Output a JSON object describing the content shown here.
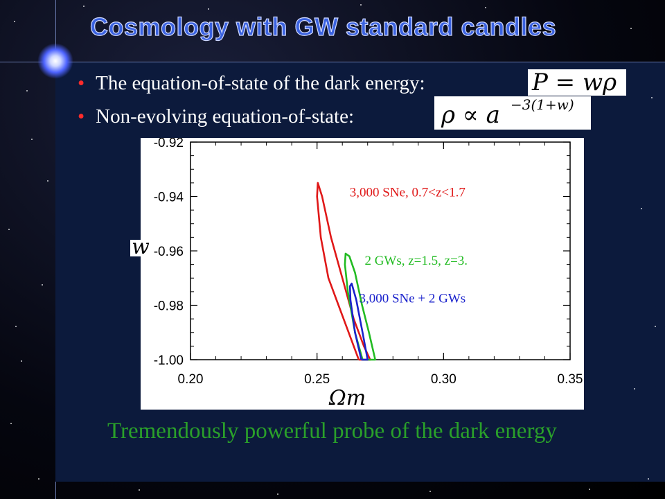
{
  "slide": {
    "title": "Cosmology with GW standard candles",
    "bullets": [
      {
        "text": "The equation-of-state of the dark energy:",
        "equation": "P = wρ"
      },
      {
        "text": "Non-evolving equation-of-state:",
        "equation_base": "ρ ∝ a",
        "equation_exp": "−3(1+w)"
      }
    ],
    "footer": "Tremendously powerful probe of the dark energy"
  },
  "colors": {
    "title": "#3a62e0",
    "bullet_dot": "#ff2b2b",
    "footer": "#2aa02a",
    "panel": "#0c1a3c"
  },
  "chart_data": {
    "type": "line",
    "xlabel": "Ωm",
    "ylabel": "w",
    "xlim": [
      0.2,
      0.35
    ],
    "ylim": [
      -1.0,
      -0.92
    ],
    "xticks": [
      "0.20",
      "0.25",
      "0.30",
      "0.35"
    ],
    "yticks": [
      "-0.92",
      "-0.94",
      "-0.96",
      "-0.98",
      "-1.00"
    ],
    "series": [
      {
        "name": "3,000 SNe, 0.7<z<1.7",
        "color": "#e01818",
        "x": [
          0.2665,
          0.2625,
          0.2585,
          0.2545,
          0.2515,
          0.25,
          0.2503,
          0.252,
          0.2555,
          0.26,
          0.2645,
          0.2685,
          0.271,
          0.27,
          0.269,
          0.2665
        ],
        "y": [
          -1.0,
          -0.99,
          -0.98,
          -0.97,
          -0.955,
          -0.94,
          -0.935,
          -0.94,
          -0.955,
          -0.97,
          -0.985,
          -0.995,
          -1.0,
          -1.0,
          -1.0,
          -1.0
        ]
      },
      {
        "name": "2 GWs, z=1.5, z=3.",
        "color": "#22bb22",
        "x": [
          0.268,
          0.265,
          0.2622,
          0.261,
          0.2613,
          0.2628,
          0.265,
          0.2678,
          0.2705,
          0.273,
          0.272,
          0.27,
          0.268
        ],
        "y": [
          -1.0,
          -0.99,
          -0.975,
          -0.965,
          -0.961,
          -0.962,
          -0.968,
          -0.98,
          -0.99,
          -1.0,
          -1.0,
          -1.0,
          -1.0
        ]
      },
      {
        "name": "3,000 SNe + 2 GWs",
        "color": "#1a22cc",
        "x": [
          0.2675,
          0.265,
          0.2632,
          0.263,
          0.2637,
          0.2655,
          0.268,
          0.27,
          0.269,
          0.2675
        ],
        "y": [
          -1.0,
          -0.99,
          -0.978,
          -0.973,
          -0.972,
          -0.978,
          -0.99,
          -1.0,
          -1.0,
          -1.0
        ]
      }
    ],
    "annotations": [
      {
        "text": "3,000 SNe, 0.7<z<1.7",
        "series": 0
      },
      {
        "text": "2 GWs, z=1.5, z=3.",
        "series": 1
      },
      {
        "text": "3,000 SNe + 2 GWs",
        "series": 2
      }
    ]
  }
}
